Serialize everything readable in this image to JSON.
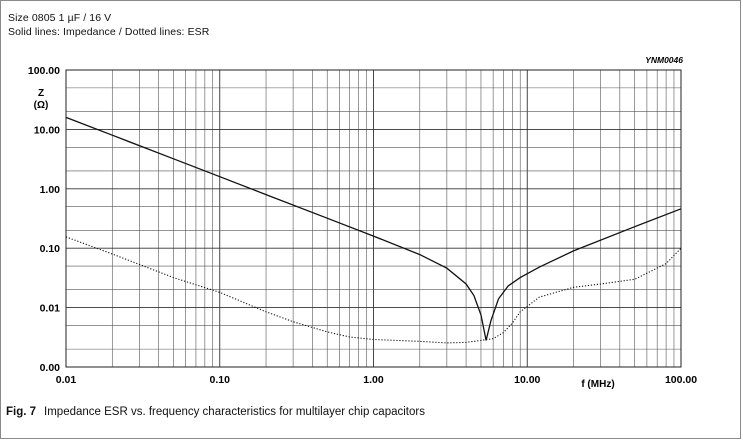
{
  "header": {
    "line1": "Size 0805 1 µF / 16 V",
    "line2": "Solid lines: Impedance / Dotted lines: ESR"
  },
  "figure_code": "YNM0046",
  "caption": {
    "label": "Fig. 7",
    "text": "Impedance ESR vs. frequency characteristics for multilayer chip capacitors"
  },
  "chart_data": {
    "type": "line",
    "x_scale": "log",
    "y_scale": "log",
    "xlim": [
      0.01,
      100
    ],
    "ylim": [
      0.001,
      100
    ],
    "ylabel_line1": "Z",
    "ylabel_line2": "(Ω)",
    "xlabel": "f (MHz)",
    "x_ticks": [
      {
        "value": 0.01,
        "label": "0.01"
      },
      {
        "value": 0.1,
        "label": "0.10"
      },
      {
        "value": 1,
        "label": "1.00"
      },
      {
        "value": 10,
        "label": "10.00"
      },
      {
        "value": 100,
        "label": "100.00"
      }
    ],
    "y_ticks": [
      {
        "value": 0.001,
        "label": "0.00"
      },
      {
        "value": 0.01,
        "label": "0.01"
      },
      {
        "value": 0.1,
        "label": "0.10"
      },
      {
        "value": 1,
        "label": "1.00"
      },
      {
        "value": 10,
        "label": "10.00"
      },
      {
        "value": 100,
        "label": "100.00"
      }
    ],
    "grid": true,
    "series": [
      {
        "style": "solid",
        "points": [
          [
            0.01,
            15.9
          ],
          [
            0.02,
            8.0
          ],
          [
            0.05,
            3.2
          ],
          [
            0.1,
            1.6
          ],
          [
            0.2,
            0.8
          ],
          [
            0.5,
            0.32
          ],
          [
            1.0,
            0.16
          ],
          [
            2.0,
            0.078
          ],
          [
            3.0,
            0.046
          ],
          [
            4.0,
            0.025
          ],
          [
            4.5,
            0.016
          ],
          [
            5.0,
            0.0075
          ],
          [
            5.4,
            0.0028
          ],
          [
            5.8,
            0.006
          ],
          [
            6.5,
            0.014
          ],
          [
            7.5,
            0.023
          ],
          [
            9.0,
            0.032
          ],
          [
            12.0,
            0.048
          ],
          [
            20.0,
            0.09
          ],
          [
            50.0,
            0.23
          ],
          [
            100.0,
            0.46
          ]
        ]
      },
      {
        "style": "dotted",
        "points": [
          [
            0.01,
            0.155
          ],
          [
            0.02,
            0.08
          ],
          [
            0.05,
            0.032
          ],
          [
            0.1,
            0.018
          ],
          [
            0.2,
            0.0085
          ],
          [
            0.3,
            0.0058
          ],
          [
            0.5,
            0.0039
          ],
          [
            0.7,
            0.0032
          ],
          [
            1.0,
            0.0029
          ],
          [
            2.0,
            0.0027
          ],
          [
            3.0,
            0.00255
          ],
          [
            4.0,
            0.0026
          ],
          [
            5.0,
            0.0028
          ],
          [
            6.0,
            0.003
          ],
          [
            7.0,
            0.0038
          ],
          [
            8.0,
            0.0055
          ],
          [
            9.0,
            0.0085
          ],
          [
            12.0,
            0.015
          ],
          [
            20.0,
            0.022
          ],
          [
            30.0,
            0.025
          ],
          [
            50.0,
            0.03
          ],
          [
            80.0,
            0.055
          ],
          [
            100.0,
            0.1
          ]
        ]
      }
    ]
  }
}
